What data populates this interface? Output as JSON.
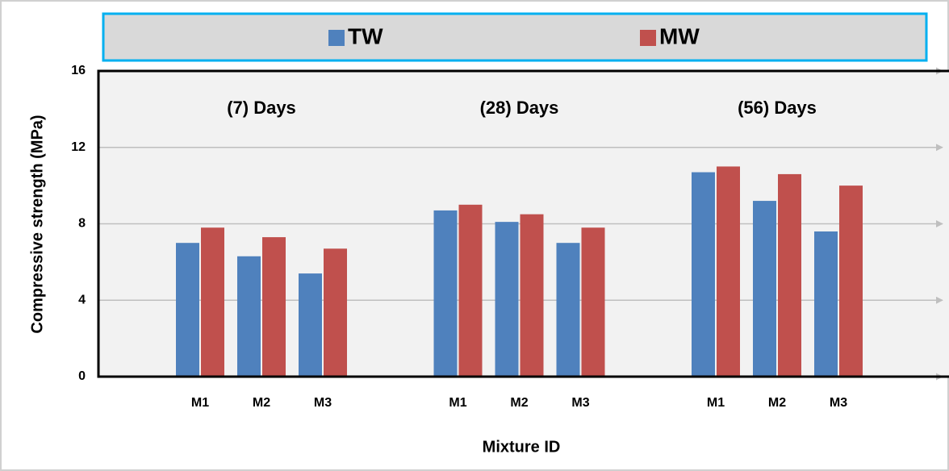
{
  "chart_data": {
    "type": "bar",
    "y_label": "Compressive strength (MPa)",
    "x_label": "Mixture ID",
    "group_labels": [
      "(7) Days",
      "(28) Days",
      "(56) Days"
    ],
    "categories": [
      "M1",
      "M2",
      "M3",
      "M1",
      "M2",
      "M3",
      "M1",
      "M2",
      "M3"
    ],
    "series": [
      {
        "name": "TW",
        "color": "#4f81bd",
        "values": [
          7.0,
          6.3,
          5.4,
          8.7,
          8.1,
          7.0,
          10.7,
          9.2,
          7.6
        ]
      },
      {
        "name": "MW",
        "color": "#c0504d",
        "values": [
          7.8,
          7.3,
          6.7,
          9.0,
          8.5,
          7.8,
          11.0,
          10.6,
          10.0
        ]
      }
    ],
    "ylim": [
      0,
      16
    ],
    "yticks": [
      0,
      4,
      8,
      12,
      16
    ],
    "grid": true,
    "legend": "top"
  }
}
